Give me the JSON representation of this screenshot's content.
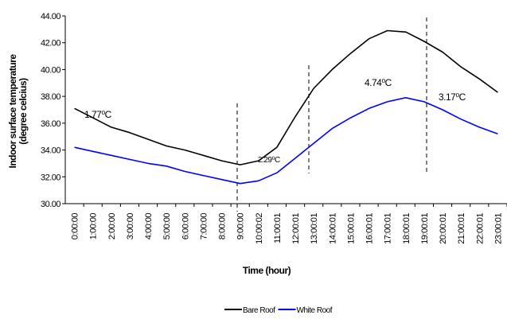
{
  "chart_data": {
    "type": "line",
    "y_label_lines": [
      "Indoor surface temperature",
      "(degree celcius)"
    ],
    "x_label": "Time (hour)",
    "categories": [
      "0:00:00",
      "1:00:00",
      "2:00:00",
      "3:00:00",
      "4:00:00",
      "5:00:00",
      "6:00:00",
      "7:00:00",
      "8:00:00",
      "9:00:00",
      "10:00:02",
      "11:00:01",
      "12:00:01",
      "13:00:01",
      "14:00:01",
      "15:00:01",
      "16:00:01",
      "17:00:01",
      "18:00:01",
      "19:00:01",
      "20:00:01",
      "21:00:01",
      "22:00:01",
      "23:00:01"
    ],
    "series": [
      {
        "name": "Bare Roof",
        "color": "#000000",
        "values": [
          37.1,
          36.4,
          35.7,
          35.3,
          34.8,
          34.3,
          34.0,
          33.6,
          33.2,
          32.9,
          33.2,
          34.2,
          36.5,
          38.6,
          40.0,
          41.2,
          42.3,
          42.9,
          42.8,
          42.1,
          41.3,
          40.2,
          39.3,
          38.3
        ]
      },
      {
        "name": "White Roof",
        "color": "#0000ff",
        "values": [
          34.2,
          33.9,
          33.6,
          33.3,
          33.0,
          32.8,
          32.4,
          32.1,
          31.8,
          31.5,
          31.7,
          32.3,
          33.4,
          34.5,
          35.6,
          36.4,
          37.1,
          37.6,
          37.9,
          37.6,
          37.0,
          36.3,
          35.7,
          35.2
        ]
      }
    ],
    "annotations": [
      "1.77⁰C",
      "2.29⁰C",
      "4.74⁰C",
      "3.17⁰C"
    ],
    "ylim": [
      30,
      44
    ],
    "yticks": [
      {
        "value": 30,
        "label": "30.00"
      },
      {
        "value": 32,
        "label": "32.00"
      },
      {
        "value": 34,
        "label": "34.00"
      },
      {
        "value": 36,
        "label": "36.00"
      },
      {
        "value": 38,
        "label": "38.00"
      },
      {
        "value": 40,
        "label": "40.00"
      },
      {
        "value": 42,
        "label": "42.00"
      },
      {
        "value": 44,
        "label": "44.00"
      }
    ],
    "legend_position": "bottom"
  }
}
